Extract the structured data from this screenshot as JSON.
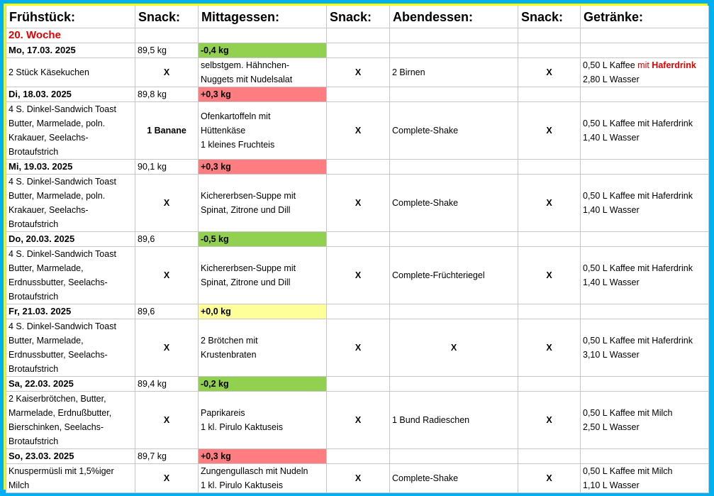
{
  "headers": [
    "Frühstück:",
    "Snack:",
    "Mittagessen:",
    "Snack:",
    "Abendessen:",
    "Snack:",
    "Getränke:"
  ],
  "week_label": "20. Woche",
  "colors": {
    "green": "#92d050",
    "red": "#ff7c80",
    "yellow": "#ffff99",
    "frame_outer": "#00b0f0",
    "frame_inner": "#ffff00"
  },
  "days": [
    {
      "date": "Mo, 17.03. 2025",
      "weight": "89,5 kg",
      "delta": "-0,4 kg",
      "delta_color": "green",
      "breakfast": [
        "2 Stück Käsekuchen"
      ],
      "snack1": "X",
      "lunch": [
        "selbstgem. Hähnchen-",
        "Nuggets mit Nudelsalat"
      ],
      "snack2": "X",
      "dinner": "2  Birnen",
      "dinner_center": false,
      "snack3": "X",
      "drink1": "0,50 L Kaffee",
      "drink1_extra_a": " mit ",
      "drink1_extra_b": "Haferdrink",
      "drink1_red": true,
      "drink2": "2,80 L Wasser"
    },
    {
      "date": "Di, 18.03. 2025",
      "weight": "89,8 kg",
      "delta": "+0,3  kg",
      "delta_color": "red",
      "breakfast": [
        "4 S. Dinkel-Sandwich Toast",
        "Butter, Marmelade, poln.",
        "Krakauer, Seelachs-",
        "Brotaufstrich"
      ],
      "snack1": "1 Banane",
      "lunch": [
        "Ofenkartoffeln mit",
        "Hüttenkäse",
        "1 kleines Fruchteis"
      ],
      "snack2": "X",
      "dinner": "Complete-Shake",
      "dinner_center": false,
      "snack3": "X",
      "drink1": "0,50 L Kaffee mit Haferdrink",
      "drink1_extra_a": "",
      "drink1_extra_b": "",
      "drink1_red": false,
      "drink2": "1,40 L Wasser"
    },
    {
      "date": "Mi, 19.03. 2025",
      "weight": "90,1 kg",
      "delta": "+0,3  kg",
      "delta_color": "red",
      "breakfast": [
        "4 S. Dinkel-Sandwich Toast",
        "Butter, Marmelade, poln.",
        "Krakauer, Seelachs-",
        "Brotaufstrich"
      ],
      "snack1": "X",
      "lunch": [
        "Kichererbsen-Suppe mit",
        "Spinat,  Zitrone und Dill"
      ],
      "snack2": "X",
      "dinner": "Complete-Shake",
      "dinner_center": false,
      "snack3": "X",
      "drink1": "0,50 L Kaffee mit Haferdrink",
      "drink1_extra_a": "",
      "drink1_extra_b": "",
      "drink1_red": false,
      "drink2": "1,40 L Wasser"
    },
    {
      "date": "Do, 20.03. 2025",
      "weight": "89,6",
      "delta": "-0,5 kg",
      "delta_color": "green",
      "breakfast": [
        "4 S. Dinkel-Sandwich Toast",
        "Butter, Marmelade,",
        "Erdnussbutter, Seelachs-",
        "Brotaufstrich"
      ],
      "snack1": "X",
      "lunch": [
        "Kichererbsen-Suppe mit",
        "Spinat,  Zitrone und Dill"
      ],
      "snack2": "X",
      "dinner": "Complete-Früchteriegel",
      "dinner_center": false,
      "snack3": "X",
      "drink1": "0,50 L Kaffee mit Haferdrink",
      "drink1_extra_a": "",
      "drink1_extra_b": "",
      "drink1_red": false,
      "drink2": "1,40 L Wasser"
    },
    {
      "date": "Fr, 21.03. 2025",
      "weight": "89,6",
      "delta": "+0,0  kg",
      "delta_color": "yellow",
      "breakfast": [
        "4 S. Dinkel-Sandwich Toast",
        "Butter, Marmelade,",
        "Erdnussbutter, Seelachs-",
        "Brotaufstrich"
      ],
      "snack1": "X",
      "lunch": [
        "2 Brötchen mit",
        "Krustenbraten"
      ],
      "snack2": "X",
      "dinner": "X",
      "dinner_center": true,
      "snack3": "X",
      "drink1": "0,50 L Kaffee mit Haferdrink",
      "drink1_extra_a": "",
      "drink1_extra_b": "",
      "drink1_red": false,
      "drink2": "3,10 L Wasser"
    },
    {
      "date": "Sa, 22.03. 2025",
      "weight": "89,4 kg",
      "delta": "-0,2 kg",
      "delta_color": "green",
      "breakfast": [
        "2 Kaiserbrötchen, Butter,",
        "Marmelade, Erdnußbutter,",
        "Bierschinken, Seelachs-",
        "Brotaufstrich"
      ],
      "snack1": "X",
      "lunch": [
        "Paprikareis",
        "1 kl. Pirulo Kaktuseis"
      ],
      "snack2": "X",
      "dinner": "1 Bund Radieschen",
      "dinner_center": false,
      "snack3": "X",
      "drink1": "0,50 L Kaffee mit Milch",
      "drink1_extra_a": "",
      "drink1_extra_b": "",
      "drink1_red": false,
      "drink2": "2,50 L Wasser"
    },
    {
      "date": "So, 23.03. 2025",
      "weight": "89,7 kg",
      "delta": "+0,3  kg",
      "delta_color": "red",
      "breakfast": [
        "Knuspermüsli mit 1,5%iger",
        "Milch"
      ],
      "snack1": "X",
      "lunch": [
        "Zungengullasch mit Nudeln",
        "1 kl. Pirulo Kaktuseis"
      ],
      "snack2": "X",
      "dinner": "Complete-Shake",
      "dinner_center": false,
      "snack3": "X",
      "drink1": "0,50 L Kaffee mit Milch",
      "drink1_extra_a": "",
      "drink1_extra_b": "",
      "drink1_red": false,
      "drink2": "1,10 L Wasser"
    }
  ]
}
